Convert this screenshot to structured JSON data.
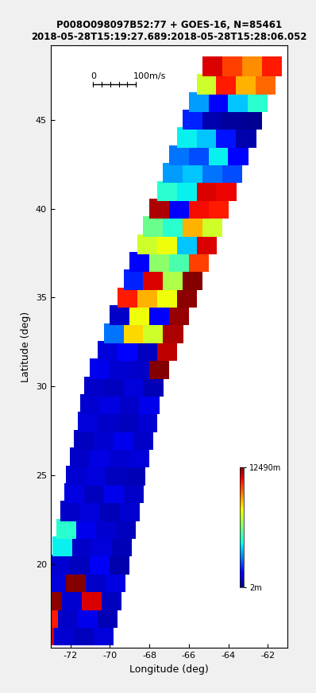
{
  "chart_data": {
    "type": "scatter",
    "title": "P008O098097B52:77 + GOES-16, N=85461\n2018-05-28T15:19:27.689:2018-05-28T15:28:06.052",
    "x_label": "Longitude (deg)",
    "y_label": "Latitude (deg)",
    "xlim": [
      -73,
      -61
    ],
    "xticks": [
      -72,
      -70,
      -68,
      -66,
      -64,
      -62
    ],
    "ylim": [
      15.3,
      49.2
    ],
    "yticks": [
      20,
      25,
      30,
      35,
      40,
      45
    ],
    "scale_bar": {
      "start_label": "0",
      "end_label": "100m/s"
    },
    "colorbar_range": [
      2,
      12490
    ],
    "colorbar_ticks": [
      {
        "value": 12490,
        "label": "12490m"
      },
      {
        "value": 2,
        "label": "2m"
      }
    ],
    "marker": "square",
    "x": [
      -73.3,
      -72.3,
      -71.3,
      -70.3,
      -73.1,
      -72.1,
      -71.1,
      -70.1,
      -72.9,
      -71.9,
      -70.9,
      -69.9,
      -72.7,
      -71.7,
      -70.7,
      -69.7,
      -72.5,
      -71.5,
      -70.5,
      -69.5,
      -72.4,
      -71.4,
      -70.4,
      -69.4,
      -72.2,
      -71.2,
      -70.2,
      -69.2,
      -72.0,
      -71.0,
      -70.0,
      -69.0,
      -71.8,
      -70.8,
      -69.8,
      -68.8,
      -71.7,
      -70.7,
      -69.7,
      -68.7,
      -71.5,
      -70.5,
      -69.5,
      -68.5,
      -71.3,
      -70.3,
      -69.3,
      -68.3,
      -71.1,
      -70.1,
      -69.1,
      -68.1,
      -71.0,
      -70.0,
      -69.0,
      -68.0,
      -70.8,
      -69.8,
      -68.8,
      -67.8,
      -70.5,
      -69.5,
      -68.5,
      -67.5,
      -70.1,
      -69.1,
      -68.1,
      -67.1,
      -69.8,
      -68.8,
      -67.8,
      -66.8,
      -69.5,
      -68.5,
      -67.5,
      -66.5,
      -69.1,
      -68.1,
      -67.1,
      -66.1,
      -68.8,
      -67.8,
      -66.8,
      -65.8,
      -68.5,
      -67.5,
      -66.5,
      -65.5,
      -68.1,
      -67.1,
      -66.1,
      -65.1,
      -67.8,
      -66.8,
      -65.8,
      -64.8,
      -67.5,
      -66.5,
      -65.5,
      -64.5,
      -67.1,
      -66.1,
      -65.1,
      -64.1,
      -66.8,
      -65.8,
      -64.8,
      -63.8,
      -66.5,
      -65.5,
      -64.5,
      -63.5,
      -66.1,
      -65.1,
      -64.1,
      -63.1,
      -65.8,
      -64.8,
      -63.8,
      -62.8,
      -65.5,
      -64.5,
      -63.5,
      -62.5,
      -65.1,
      -64.1,
      -63.1,
      -62.1,
      -64.8,
      -63.8,
      -62.8,
      -61.8
    ],
    "y": [
      16,
      16,
      16,
      16,
      17,
      17,
      17,
      17,
      18,
      18,
      18,
      18,
      19,
      19,
      19,
      19,
      20,
      20,
      20,
      20,
      21,
      21,
      21,
      21,
      22,
      22,
      22,
      22,
      23,
      23,
      23,
      23,
      24,
      24,
      24,
      24,
      25,
      25,
      25,
      25,
      26,
      26,
      26,
      26,
      27,
      27,
      27,
      27,
      28,
      28,
      28,
      28,
      29,
      29,
      29,
      29,
      30,
      30,
      30,
      30,
      31,
      31,
      31,
      31,
      32,
      32,
      32,
      32,
      33,
      33,
      33,
      33,
      34,
      34,
      34,
      34,
      35,
      35,
      35,
      35,
      36,
      36,
      36,
      36,
      37,
      37,
      37,
      37,
      38,
      38,
      38,
      38,
      39,
      39,
      39,
      39,
      40,
      40,
      40,
      40,
      41,
      41,
      41,
      41,
      42,
      42,
      42,
      42,
      43,
      43,
      43,
      43,
      44,
      44,
      44,
      44,
      45,
      45,
      45,
      45,
      46,
      46,
      46,
      46,
      47,
      47,
      47,
      47,
      48,
      48,
      48,
      48
    ],
    "heights": [
      11500,
      900,
      700,
      1000,
      11000,
      800,
      1200,
      600,
      12300,
      900,
      11500,
      700,
      1000,
      12400,
      800,
      1100,
      900,
      700,
      1300,
      500,
      4500,
      800,
      1000,
      600,
      5000,
      1200,
      900,
      700,
      800,
      1000,
      600,
      900,
      1100,
      700,
      1200,
      800,
      900,
      1000,
      700,
      600,
      800,
      1100,
      900,
      1000,
      700,
      900,
      1200,
      800,
      1000,
      800,
      700,
      900,
      900,
      1100,
      800,
      1200,
      800,
      700,
      1000,
      600,
      1200,
      900,
      800,
      12400,
      1000,
      1500,
      700,
      11800,
      3000,
      8500,
      7500,
      12000,
      800,
      8000,
      1500,
      12200,
      11000,
      9000,
      8000,
      12300,
      2000,
      11500,
      7000,
      12400,
      1500,
      6500,
      5500,
      10500,
      7500,
      8000,
      4000,
      11500,
      6000,
      5000,
      9000,
      7500,
      12000,
      1500,
      11200,
      11000,
      5000,
      4500,
      11500,
      11300,
      3500,
      4000,
      3000,
      2500,
      3000,
      2500,
      4500,
      1500,
      4500,
      4000,
      1800,
      500,
      2000,
      500,
      300,
      200,
      3500,
      1500,
      4000,
      5000,
      7500,
      11000,
      9000,
      10000,
      11500,
      10500,
      9500,
      11000
    ]
  }
}
